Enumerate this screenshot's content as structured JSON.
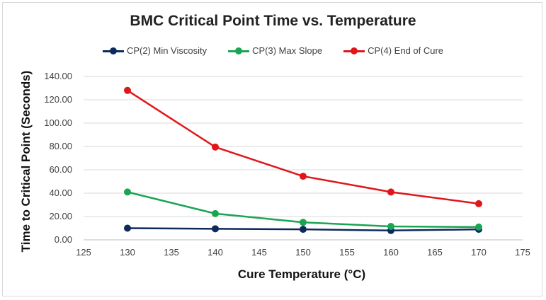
{
  "chart_data": {
    "type": "line",
    "title": "BMC Critical Point Time vs. Temperature",
    "xlabel": "Cure Temperature (°C)",
    "ylabel": "Time to Critical Point (Seconds)",
    "xlim": [
      125,
      175
    ],
    "ylim": [
      0,
      140
    ],
    "x_ticks": [
      "125",
      "130",
      "135",
      "140",
      "145",
      "150",
      "155",
      "160",
      "165",
      "170",
      "175"
    ],
    "y_ticks": [
      "0.00",
      "20.00",
      "40.00",
      "60.00",
      "80.00",
      "100.00",
      "120.00",
      "140.00"
    ],
    "x": [
      130,
      140,
      150,
      160,
      170
    ],
    "legend_position": "top",
    "grid": "horizontal",
    "series": [
      {
        "name": "CP(2) Min Viscosity",
        "color": "#0d2a5c",
        "values": [
          10,
          9.5,
          9,
          8,
          9
        ]
      },
      {
        "name": "CP(3) Max Slope",
        "color": "#1aa553",
        "values": [
          41,
          22.5,
          15,
          11.5,
          11
        ]
      },
      {
        "name": "CP(4) End of Cure",
        "color": "#e0161b",
        "values": [
          128,
          79.5,
          54.5,
          41,
          31
        ]
      }
    ]
  }
}
